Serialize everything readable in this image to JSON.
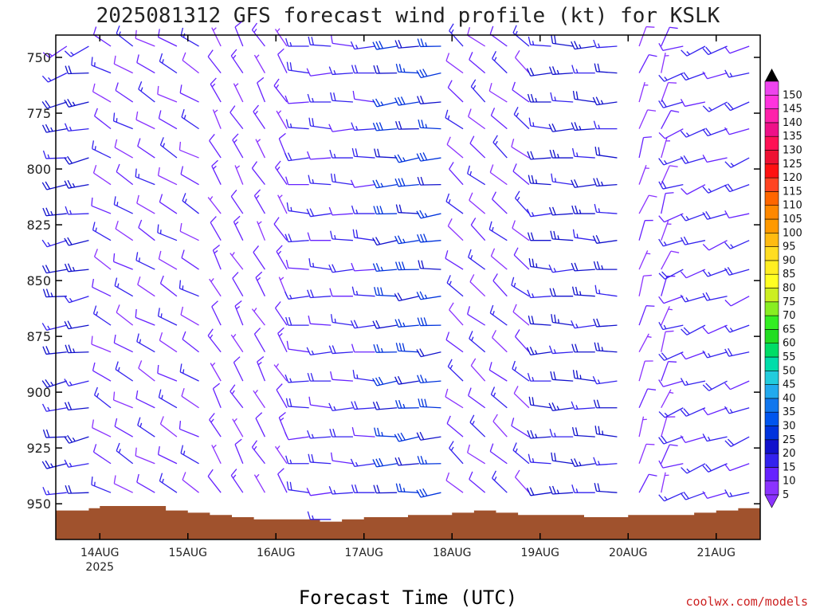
{
  "title": "2025081312 GFS forecast wind profile (kt) for KSLK",
  "credit": "coolwx.com/models",
  "chart_data": {
    "type": "wind-barb-profile",
    "title": "2025081312 GFS forecast wind profile (kt) for KSLK",
    "xlabel": "Forecast Time (UTC)",
    "x_ticks": [
      "14AUG",
      "15AUG",
      "16AUG",
      "17AUG",
      "18AUG",
      "19AUG",
      "20AUG",
      "21AUG"
    ],
    "x_year_label": "2025",
    "y_ticks": [
      "750",
      "775",
      "800",
      "825",
      "850",
      "875",
      "900",
      "925",
      "950"
    ],
    "y_range_hpa": [
      740,
      966
    ],
    "y_inverted": true,
    "x_range_hours": [
      -12,
      180
    ],
    "units": "kt",
    "colorbar": {
      "labels": [
        "5",
        "10",
        "15",
        "20",
        "25",
        "30",
        "35",
        "40",
        "45",
        "50",
        "55",
        "60",
        "65",
        "70",
        "75",
        "80",
        "85",
        "90",
        "95",
        "100",
        "105",
        "110",
        "115",
        "120",
        "125",
        "130",
        "135",
        "140",
        "145",
        "150"
      ],
      "colors": [
        "#8b33ff",
        "#6622ff",
        "#3322ee",
        "#1111cc",
        "#0033dd",
        "#0055ee",
        "#1177ee",
        "#22aaee",
        "#22ccdd",
        "#00ddaa",
        "#00dd66",
        "#22dd22",
        "#33ee22",
        "#88ee22",
        "#ccee22",
        "#ffff22",
        "#ffee22",
        "#ffdd22",
        "#ffbb11",
        "#ff9900",
        "#ff8800",
        "#ff6600",
        "#ff4422",
        "#ff1111",
        "#ee1133",
        "#ff1155",
        "#ee1188",
        "#ff22aa",
        "#ff33dd",
        "#ee44ee"
      ]
    },
    "terrain_color": "#a0522d",
    "terrain": [
      {
        "t": -12,
        "p": 953
      },
      {
        "t": -3,
        "p": 952
      },
      {
        "t": 0,
        "p": 951
      },
      {
        "t": 9,
        "p": 951
      },
      {
        "t": 18,
        "p": 953
      },
      {
        "t": 24,
        "p": 954
      },
      {
        "t": 30,
        "p": 955
      },
      {
        "t": 36,
        "p": 956
      },
      {
        "t": 42,
        "p": 957
      },
      {
        "t": 48,
        "p": 957
      },
      {
        "t": 54,
        "p": 957
      },
      {
        "t": 60,
        "p": 958
      },
      {
        "t": 66,
        "p": 957
      },
      {
        "t": 72,
        "p": 956
      },
      {
        "t": 78,
        "p": 956
      },
      {
        "t": 84,
        "p": 955
      },
      {
        "t": 90,
        "p": 955
      },
      {
        "t": 96,
        "p": 954
      },
      {
        "t": 102,
        "p": 953
      },
      {
        "t": 108,
        "p": 954
      },
      {
        "t": 114,
        "p": 955
      },
      {
        "t": 120,
        "p": 955
      },
      {
        "t": 126,
        "p": 955
      },
      {
        "t": 132,
        "p": 956
      },
      {
        "t": 138,
        "p": 956
      },
      {
        "t": 144,
        "p": 955
      },
      {
        "t": 150,
        "p": 955
      },
      {
        "t": 156,
        "p": 955
      },
      {
        "t": 162,
        "p": 954
      },
      {
        "t": 168,
        "p": 953
      },
      {
        "t": 174,
        "p": 952
      },
      {
        "t": 180,
        "p": 953
      }
    ],
    "wind_field": {
      "time_step_hours": 6,
      "pressure_levels": [
        745,
        757,
        770,
        782,
        795,
        807,
        820,
        832,
        845,
        857,
        870,
        882,
        895,
        907,
        920,
        932,
        945,
        957
      ],
      "segments": [
        {
          "t_start": -12,
          "t_end": 0,
          "speed_kt": 20,
          "dir_deg": 260
        },
        {
          "t_start": 0,
          "t_end": 30,
          "speed_kt": 12,
          "dir_deg": 300
        },
        {
          "t_start": 30,
          "t_end": 54,
          "speed_kt": 10,
          "dir_deg": 330
        },
        {
          "t_start": 54,
          "t_end": 78,
          "speed_kt": 15,
          "dir_deg": 270
        },
        {
          "t_start": 78,
          "t_end": 96,
          "speed_kt": 25,
          "dir_deg": 265
        },
        {
          "t_start": 96,
          "t_end": 120,
          "speed_kt": 12,
          "dir_deg": 310
        },
        {
          "t_start": 120,
          "t_end": 144,
          "speed_kt": 20,
          "dir_deg": 270
        },
        {
          "t_start": 144,
          "t_end": 156,
          "speed_kt": 8,
          "dir_deg": 20
        },
        {
          "t_start": 156,
          "t_end": 180,
          "speed_kt": 15,
          "dir_deg": 250
        }
      ]
    },
    "grid": false
  }
}
